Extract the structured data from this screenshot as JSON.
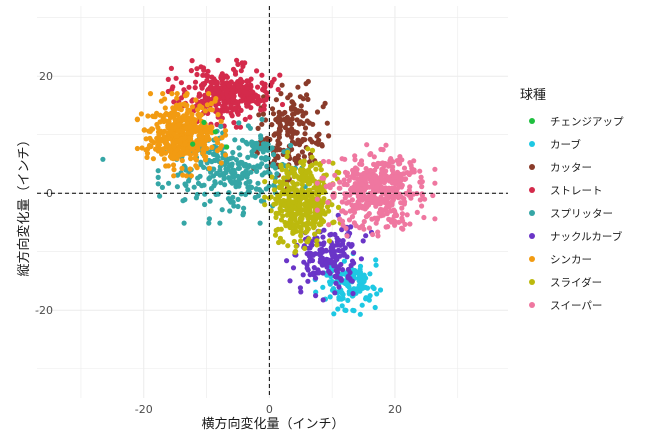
{
  "chart_data": {
    "type": "scatter",
    "xlabel": "横方向変化量（インチ）",
    "ylabel": "縦方向変化量（インチ）",
    "xlim": [
      -37,
      38
    ],
    "ylim": [
      -35,
      32
    ],
    "x_ticks": [
      -20,
      0,
      20
    ],
    "y_ticks": [
      -20,
      0,
      20
    ],
    "x_tick_labels": [
      "-20",
      "0",
      "20"
    ],
    "y_tick_labels": [
      "-20",
      "0",
      "20"
    ],
    "grid": true,
    "reference_lines": {
      "x": 0,
      "y": 0,
      "style": "dashed"
    },
    "legend_title": "球種",
    "legend_position": "right",
    "series": [
      {
        "name": "チェンジアップ",
        "color": "#1fbf3f",
        "n": 4,
        "center": [
          -9,
          9
        ],
        "sd": [
          3,
          3
        ],
        "points": [
          [
            -8.6,
            10.5
          ],
          [
            -12.2,
            8.4
          ],
          [
            -6.8,
            7.9
          ],
          [
            -10.4,
            12.1
          ]
        ]
      },
      {
        "name": "カーブ",
        "color": "#1ec8e3",
        "n": 130,
        "center": [
          12.5,
          -15.5
        ],
        "sd": [
          2.0,
          2.0
        ]
      },
      {
        "name": "カッター",
        "color": "#8a3b2a",
        "n": 170,
        "center": [
          3,
          10
        ],
        "sd": [
          2.5,
          3.5
        ]
      },
      {
        "name": "ストレート",
        "color": "#d42a4b",
        "n": 330,
        "center": [
          -7,
          17
        ],
        "sd": [
          3.5,
          2.2
        ]
      },
      {
        "name": "スプリッター",
        "color": "#35a6a6",
        "n": 280,
        "center": [
          -6,
          4
        ],
        "sd": [
          4.5,
          3.5
        ],
        "points": [
          [
            -26.5,
            5.8
          ]
        ]
      },
      {
        "name": "ナックルカーブ",
        "color": "#6a35c7",
        "n": 170,
        "center": [
          9.5,
          -11
        ],
        "sd": [
          2.6,
          2.8
        ]
      },
      {
        "name": "シンカー",
        "color": "#f29b12",
        "n": 450,
        "center": [
          -14,
          10
        ],
        "sd": [
          2.7,
          2.7
        ]
      },
      {
        "name": "スライダー",
        "color": "#bcb90d",
        "n": 380,
        "center": [
          5.5,
          -1.5
        ],
        "sd": [
          2.4,
          3.5
        ]
      },
      {
        "name": "スイーパー",
        "color": "#ef77a0",
        "n": 450,
        "center": [
          17,
          0.5
        ],
        "sd": [
          3.6,
          3.0
        ]
      }
    ]
  }
}
